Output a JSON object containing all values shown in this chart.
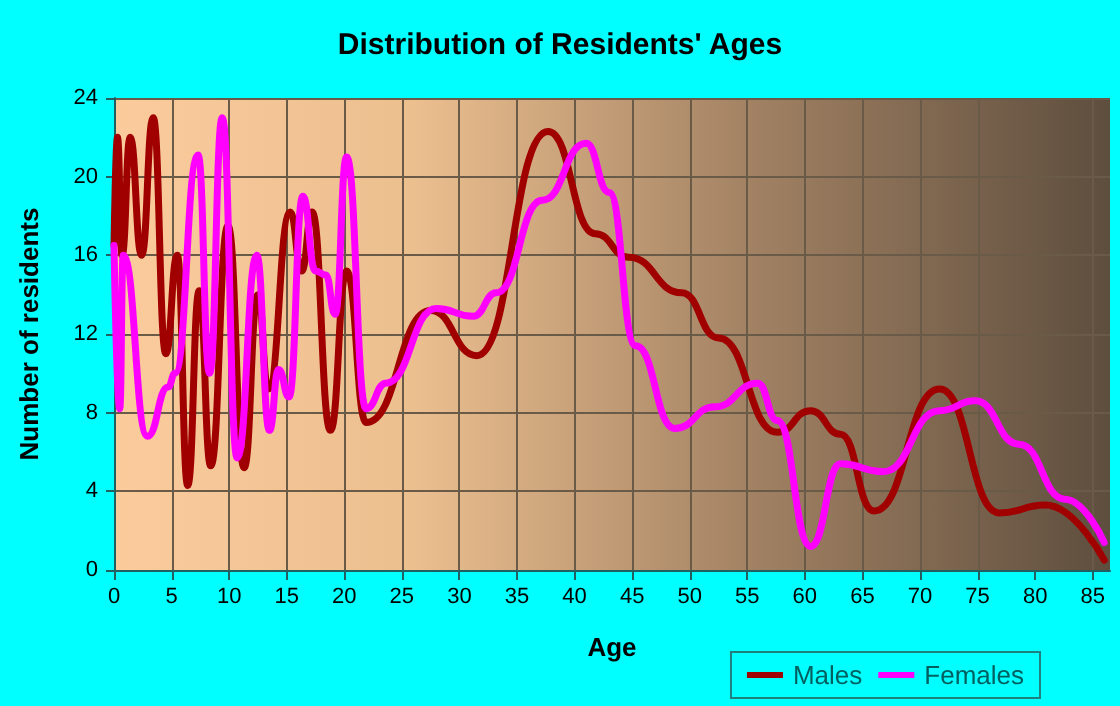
{
  "chart_data": {
    "type": "line",
    "title": "Distribution of Residents' Ages",
    "xlabel": "Age",
    "ylabel": "Number of residents",
    "xlim": [
      0,
      86.5
    ],
    "xticks": [
      0,
      5,
      10,
      15,
      20,
      25,
      30,
      35,
      40,
      45,
      50,
      55,
      60,
      65,
      70,
      75,
      80,
      85
    ],
    "ylim": [
      0,
      24
    ],
    "yticks": [
      0,
      4,
      8,
      12,
      16,
      20,
      24
    ],
    "grid": true,
    "legend": "bottom right",
    "marker": "none",
    "line_style": "solid",
    "series": [
      {
        "name": "Males",
        "color": "#a00000",
        "x": [
          0,
          0.3,
          0.7,
          1.4,
          2.4,
          3.4,
          4.5,
          5.5,
          6.4,
          7.4,
          8.4,
          9.9,
          11.3,
          12.5,
          13.4,
          15.3,
          16.3,
          17.2,
          18.8,
          20.2,
          21.9,
          27.5,
          31.5,
          37.7,
          41.8,
          44.7,
          49.3,
          52.5,
          57.6,
          60.5,
          63.1,
          66,
          71.7,
          76.9,
          80.9,
          86
        ],
        "values": [
          16.5,
          22,
          16,
          22,
          16,
          23,
          11,
          16,
          4.3,
          14.2,
          5.3,
          17.5,
          5.2,
          14,
          9.2,
          18.2,
          15.2,
          18.2,
          7.1,
          15.2,
          7.5,
          13.2,
          10.9,
          22.3,
          17.1,
          15.9,
          14.1,
          11.8,
          7,
          8.1,
          6.9,
          3,
          9.2,
          2.9,
          3.3,
          0.5
        ]
      },
      {
        "name": "Females",
        "color": "#ff00ff",
        "x": [
          0,
          0.5,
          0.8,
          2.9,
          4.7,
          5.3,
          7.3,
          8.3,
          9.4,
          10.7,
          12.4,
          13.5,
          14.3,
          15.2,
          16.4,
          17.5,
          18.4,
          19.2,
          20.2,
          21.9,
          23.6,
          28,
          31.2,
          33.2,
          37.2,
          41,
          43,
          45.3,
          48.7,
          52.2,
          55.9,
          57.6,
          60.5,
          63.1,
          66.8,
          71.7,
          74.8,
          78.6,
          82.6,
          86
        ],
        "values": [
          16.5,
          8.2,
          16,
          6.8,
          9.3,
          10,
          21.1,
          10,
          23,
          5.7,
          16,
          7.1,
          10.2,
          8.8,
          19,
          15.2,
          15,
          13,
          21,
          8.2,
          9.5,
          13.3,
          12.9,
          14.1,
          18.8,
          21.7,
          19.2,
          11.4,
          7.2,
          8.3,
          9.5,
          7.6,
          1.2,
          5.4,
          5,
          8.1,
          8.6,
          6.4,
          3.6,
          1.4
        ]
      }
    ]
  }
}
